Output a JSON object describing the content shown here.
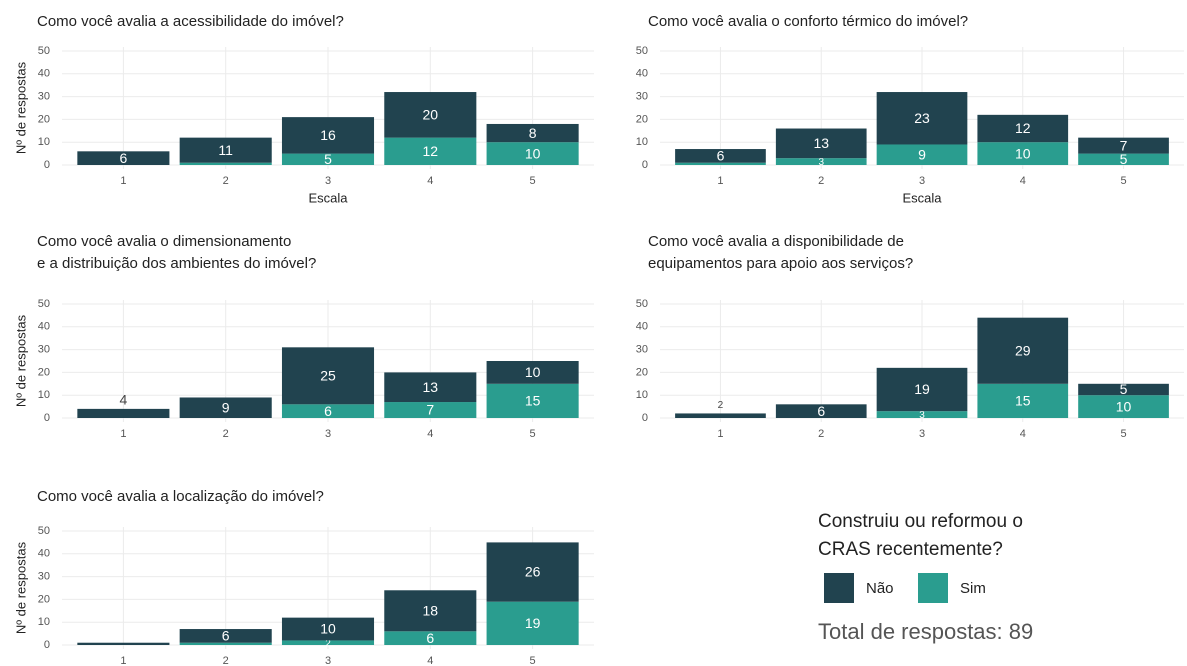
{
  "chart_data": [
    {
      "type": "bar",
      "stacked": true,
      "title": "Como você avalia a acessibilidade do imóvel?",
      "xlabel": "Escala",
      "ylabel": "Nº de respostas",
      "categories": [
        "1",
        "2",
        "3",
        "4",
        "5"
      ],
      "ylim": [
        0,
        50
      ],
      "yticks": [
        0,
        10,
        20,
        30,
        40,
        50
      ],
      "grid": true,
      "series": [
        {
          "name": "Sim",
          "color": "#2a9d8f",
          "values": [
            0,
            1,
            5,
            12,
            10
          ]
        },
        {
          "name": "Não",
          "color": "#21434f",
          "values": [
            6,
            11,
            16,
            20,
            8
          ]
        }
      ]
    },
    {
      "type": "bar",
      "stacked": true,
      "title": "Como você avalia o conforto térmico do imóvel?",
      "xlabel": "Escala",
      "categories": [
        "1",
        "2",
        "3",
        "4",
        "5"
      ],
      "ylim": [
        0,
        50
      ],
      "yticks": [
        0,
        10,
        20,
        30,
        40,
        50
      ],
      "grid": true,
      "series": [
        {
          "name": "Sim",
          "color": "#2a9d8f",
          "values": [
            1,
            3,
            9,
            10,
            5
          ]
        },
        {
          "name": "Não",
          "color": "#21434f",
          "values": [
            6,
            13,
            23,
            12,
            7
          ]
        }
      ]
    },
    {
      "type": "bar",
      "stacked": true,
      "title": "Como você avalia o dimensionamento\ne a distribuição dos ambientes do imóvel?",
      "ylabel": "Nº de respostas",
      "categories": [
        "1",
        "2",
        "3",
        "4",
        "5"
      ],
      "ylim": [
        0,
        50
      ],
      "yticks": [
        0,
        10,
        20,
        30,
        40,
        50
      ],
      "grid": true,
      "series": [
        {
          "name": "Sim",
          "color": "#2a9d8f",
          "values": [
            0,
            0,
            6,
            7,
            15
          ]
        },
        {
          "name": "Não",
          "color": "#21434f",
          "values": [
            4,
            9,
            25,
            13,
            10
          ]
        }
      ]
    },
    {
      "type": "bar",
      "stacked": true,
      "title": "Como você avalia a disponibilidade de\nequipamentos para apoio aos serviços?",
      "categories": [
        "1",
        "2",
        "3",
        "4",
        "5"
      ],
      "ylim": [
        0,
        50
      ],
      "yticks": [
        0,
        10,
        20,
        30,
        40,
        50
      ],
      "grid": true,
      "series": [
        {
          "name": "Sim",
          "color": "#2a9d8f",
          "values": [
            0,
            0,
            3,
            15,
            10
          ]
        },
        {
          "name": "Não",
          "color": "#21434f",
          "values": [
            2,
            6,
            19,
            29,
            5
          ]
        }
      ]
    },
    {
      "type": "bar",
      "stacked": true,
      "title": "Como você avalia a localização do imóvel?",
      "ylabel": "Nº de respostas",
      "categories": [
        "1",
        "2",
        "3",
        "4",
        "5"
      ],
      "ylim": [
        0,
        50
      ],
      "yticks": [
        0,
        10,
        20,
        30,
        40,
        50
      ],
      "grid": true,
      "series": [
        {
          "name": "Sim",
          "color": "#2a9d8f",
          "values": [
            0,
            1,
            2,
            6,
            19
          ]
        },
        {
          "name": "Não",
          "color": "#21434f",
          "values": [
            1,
            6,
            10,
            18,
            26
          ]
        }
      ]
    }
  ],
  "legend_title": "Construiu ou reformou o\nCRAS recentemente?",
  "note": "Total de respostas: 89"
}
